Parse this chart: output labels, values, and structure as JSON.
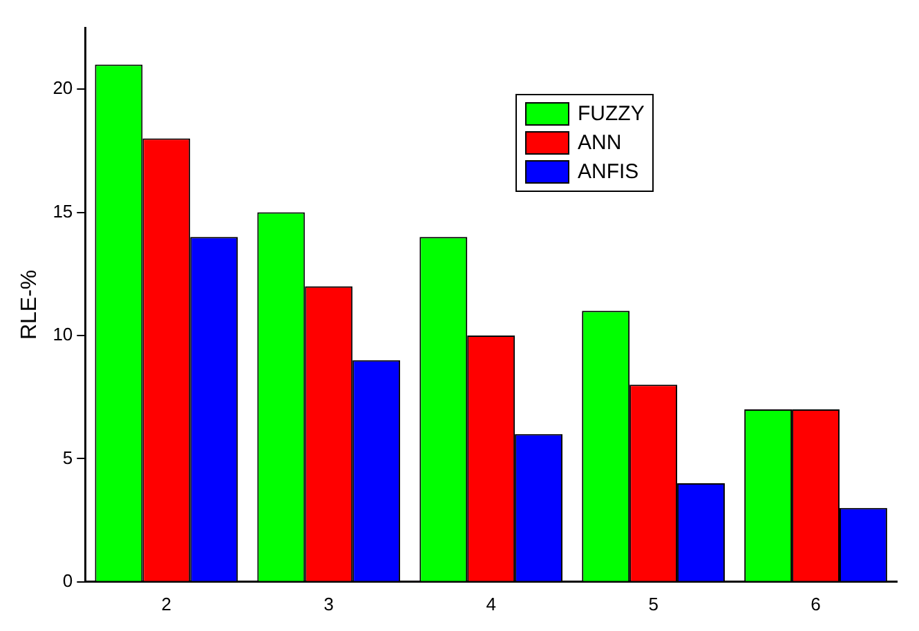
{
  "chart_data": {
    "type": "bar",
    "ylabel": "RLE-%",
    "categories": [
      "2",
      "3",
      "4",
      "5",
      "6"
    ],
    "series": [
      {
        "name": "FUZZY",
        "color": "#00ff00",
        "values": [
          21,
          15,
          14,
          11,
          7
        ]
      },
      {
        "name": "ANN",
        "color": "#ff0000",
        "values": [
          18,
          12,
          10,
          8,
          7
        ]
      },
      {
        "name": "ANFIS",
        "color": "#0000ff",
        "values": [
          14,
          9,
          6,
          4,
          3
        ]
      }
    ],
    "ylim": [
      0,
      22.5
    ],
    "yticks": [
      0,
      5,
      10,
      15,
      20
    ],
    "grid": false,
    "legend": "top right"
  }
}
